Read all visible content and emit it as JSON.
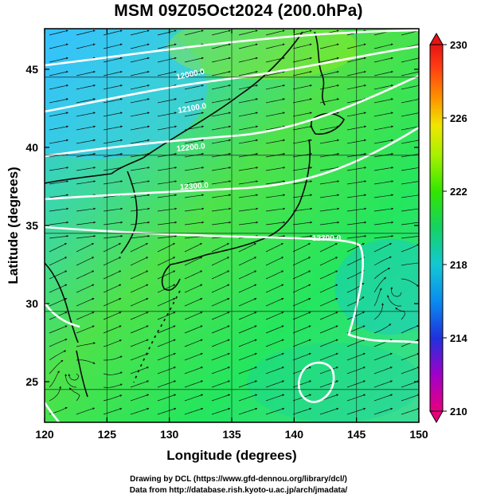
{
  "title": "MSM 09Z05Oct2024 (200.0hPa)",
  "axes": {
    "xlabel": "Longitude (degrees)",
    "ylabel": "Latitude  (degrees)",
    "x_ticks": [
      "120",
      "125",
      "130",
      "135",
      "140",
      "145",
      "150"
    ],
    "y_ticks": [
      "25",
      "30",
      "35",
      "40",
      "45"
    ],
    "x_values": [
      120,
      125,
      130,
      135,
      140,
      145,
      150
    ],
    "y_values": [
      25,
      30,
      35,
      40,
      45
    ],
    "xlim": [
      120,
      150
    ],
    "ylim": [
      22.4,
      47.6
    ]
  },
  "colorbar": {
    "ticks": [
      "230",
      "226",
      "222",
      "218",
      "214",
      "210"
    ],
    "values": [
      230,
      226,
      222,
      218,
      214,
      210
    ],
    "range": [
      210,
      230
    ],
    "colors": [
      "#e6007e",
      "#a000c8",
      "#1e32dc",
      "#0a8cf0",
      "#14c8d2",
      "#14d264",
      "#32e600",
      "#aaf000",
      "#f0e600",
      "#ff8c00",
      "#ff3c14",
      "#e61414"
    ]
  },
  "contours": [
    {
      "label": "12000.0"
    },
    {
      "label": "12100.0"
    },
    {
      "label": "12200.0"
    },
    {
      "label": "12300.0"
    },
    {
      "label": "12300.0"
    }
  ],
  "credits": {
    "line1": "Drawing by DCL (https://www.gfd-dennou.org/library/dcl/)",
    "line2": "Data from http://database.rish.kyoto-u.ac.jp/arch/jmadata/"
  },
  "map_colors": {
    "north_field": "#38c8ff",
    "central_field": "#4cdc3c",
    "south_field": "#22e65a",
    "coast": "#0a0a0a",
    "contour": "#ffffff",
    "vectors": "#111111"
  }
}
